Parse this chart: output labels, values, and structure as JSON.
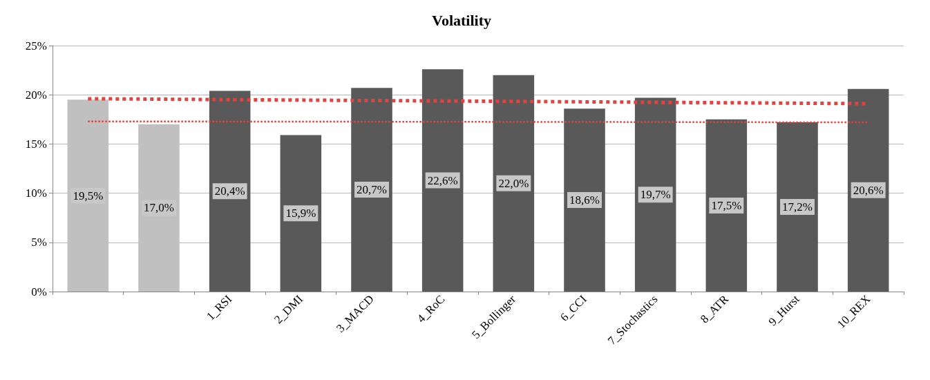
{
  "chart_data": {
    "type": "bar",
    "title": "Volatility",
    "categories": [
      null,
      null,
      "1_RSI",
      "2_DMI",
      "3_MACD",
      "4_RoC",
      "5_Bollinger",
      "6_CCI",
      "7_Stochastics",
      "8_ATR",
      "9_Hurst",
      "10_REX"
    ],
    "series": [
      {
        "colors": [
          "#c0c0c0",
          "#c0c0c0",
          "#595959",
          "#595959",
          "#595959",
          "#595959",
          "#595959",
          "#595959",
          "#595959",
          "#595959",
          "#595959",
          "#595959"
        ],
        "values": [
          19.5,
          17.0,
          20.4,
          15.9,
          20.7,
          22.6,
          22.0,
          18.6,
          19.7,
          17.5,
          17.2,
          20.6
        ],
        "value_labels": [
          "19,5%",
          "17,0%",
          "20,4%",
          "15,9%",
          "20,7%",
          "22,6%",
          "22,0%",
          "18,6%",
          "19,7%",
          "17,5%",
          "17,2%",
          "20,6%"
        ]
      },
      {
        "type": "line",
        "color": "#e8403a",
        "line_style": "dotted",
        "values": [
          19.6,
          null,
          null,
          null,
          null,
          null,
          null,
          null,
          null,
          null,
          null,
          19.1
        ]
      },
      {
        "type": "line",
        "color": "#e8403a",
        "line_style": "dotted",
        "values": [
          17.3,
          null,
          null,
          null,
          null,
          null,
          null,
          null,
          null,
          null,
          null,
          17.2
        ]
      }
    ],
    "ylim": [
      0,
      25
    ],
    "yticks": [
      {
        "value": 0,
        "label": "0%"
      },
      {
        "value": 5,
        "label": "5%"
      },
      {
        "value": 10,
        "label": "10%"
      },
      {
        "value": 15,
        "label": "15%"
      },
      {
        "value": 20,
        "label": "20%"
      },
      {
        "value": 25,
        "label": "25%"
      }
    ],
    "grid": "y",
    "marker": "none"
  }
}
